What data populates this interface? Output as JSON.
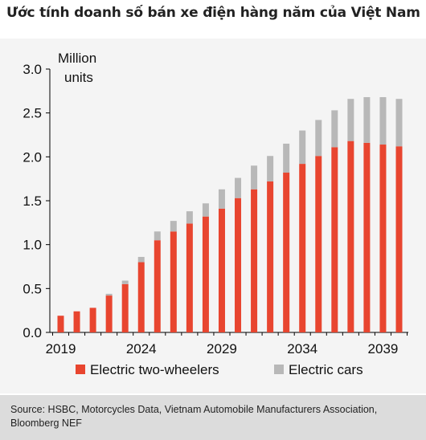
{
  "title": "Ước tính doanh số bán xe điện hàng năm của Việt Nam",
  "source": "Source: HSBC, Motorcycles Data, Vietnam Automobile Manufacturers Association, Bloomberg NEF",
  "colors": {
    "two_wheelers": "#e8452f",
    "cars": "#b8b8b8",
    "background": "#f4f4f4",
    "source_bg": "#dcdcdc"
  },
  "chart_data": {
    "type": "bar",
    "stacked": true,
    "ylabel_line1": "Million",
    "ylabel_line2": "units",
    "ylim": [
      0,
      3.0
    ],
    "yticks": [
      "0.0",
      "0.5",
      "1.0",
      "1.5",
      "2.0",
      "2.5",
      "3.0"
    ],
    "xticks": [
      "2019",
      "2024",
      "2029",
      "2034",
      "2039"
    ],
    "categories": [
      "2019",
      "2020",
      "2021",
      "2022",
      "2023",
      "2024",
      "2025",
      "2026",
      "2027",
      "2028",
      "2029",
      "2030",
      "2031",
      "2032",
      "2033",
      "2034",
      "2035",
      "2036",
      "2037",
      "2038",
      "2039",
      "2040"
    ],
    "series": [
      {
        "name": "Electric two-wheelers",
        "values": [
          0.19,
          0.24,
          0.28,
          0.42,
          0.55,
          0.8,
          1.05,
          1.15,
          1.24,
          1.32,
          1.41,
          1.53,
          1.63,
          1.72,
          1.82,
          1.92,
          2.01,
          2.11,
          2.18,
          2.16,
          2.14,
          2.12
        ]
      },
      {
        "name": "Electric cars",
        "values": [
          0,
          0,
          0,
          0.02,
          0.04,
          0.06,
          0.1,
          0.12,
          0.14,
          0.15,
          0.22,
          0.23,
          0.27,
          0.29,
          0.33,
          0.38,
          0.41,
          0.42,
          0.48,
          0.52,
          0.54,
          0.54
        ]
      }
    ],
    "legend_position": "bottom",
    "grid": false
  }
}
